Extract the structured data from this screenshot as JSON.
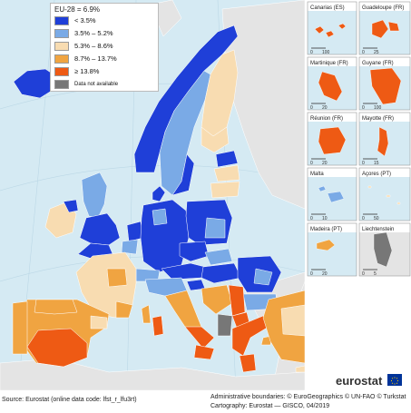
{
  "legend": {
    "title": "EU-28 = 6.9%",
    "items": [
      {
        "label": "< 3.5%",
        "color": "#1f3fd8"
      },
      {
        "label": "3.5% – 5.2%",
        "color": "#7aaae6"
      },
      {
        "label": "5.3% – 8.6%",
        "color": "#f8dcb1"
      },
      {
        "label": "8.7% – 13.7%",
        "color": "#f0a441"
      },
      {
        "label": "≥ 13.8%",
        "color": "#ee5a14"
      },
      {
        "label": "Data not available",
        "color": "#777777"
      }
    ]
  },
  "insets": [
    {
      "name": "Canarias (ES)",
      "scale": [
        "0",
        "100"
      ]
    },
    {
      "name": "Guadeloupe (FR)",
      "scale": [
        "0",
        "25"
      ]
    },
    {
      "name": "Martinique (FR)",
      "scale": [
        "0",
        "20"
      ]
    },
    {
      "name": "Guyane (FR)",
      "scale": [
        "0",
        "100"
      ]
    },
    {
      "name": "Réunion (FR)",
      "scale": [
        "0",
        "20"
      ]
    },
    {
      "name": "Mayotte (FR)",
      "scale": [
        "0",
        "15"
      ]
    },
    {
      "name": "Malta",
      "scale": [
        "0",
        "10"
      ]
    },
    {
      "name": "Açores (PT)",
      "scale": [
        "0",
        "50"
      ]
    },
    {
      "name": "Madeira (PT)",
      "scale": [
        "0",
        "20"
      ]
    },
    {
      "name": "Liechtenstein",
      "scale": [
        "0",
        "5"
      ]
    }
  ],
  "footer": {
    "source": "Source: Eurostat (online data code: lfst_r_lfu3rt)",
    "boundaries": "Administrative boundaries: © EuroGeographics © UN-FAO © Turkstat",
    "cartography": "Cartography: Eurostat — GISCO, 04/2019"
  },
  "brand": "eurostat",
  "colors": {
    "sea": "#d5eaf3",
    "nonEU": "#e4e4e4",
    "border": "#ffffff"
  }
}
